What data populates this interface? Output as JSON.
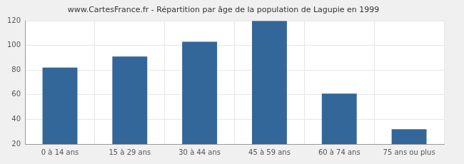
{
  "chart_data": {
    "type": "bar",
    "title": "www.CartesFrance.fr - Répartition par âge de la population de Lagupie en 1999",
    "categories": [
      "0 à 14 ans",
      "15 à 29 ans",
      "30 à 44 ans",
      "45 à 59 ans",
      "60 à 74 ans",
      "75 ans ou plus"
    ],
    "values": [
      82,
      91,
      103,
      120,
      61,
      32
    ],
    "color": "#336699",
    "ylim": [
      20,
      120
    ],
    "yticks": [
      20,
      40,
      60,
      80,
      100,
      120
    ],
    "grid": true
  }
}
